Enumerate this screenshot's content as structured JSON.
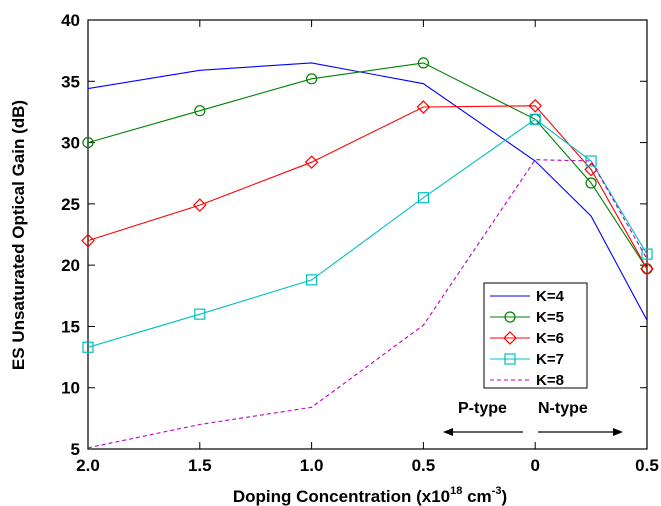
{
  "chart_data": {
    "type": "line",
    "title": "",
    "xlabel": "Doping Concentration (x10",
    "xlabel_sup": "18",
    "xlabel_tail": " cm",
    "xlabel_sup2": "-3",
    "xlabel_end": ")",
    "ylabel": "ES Unsaturated Optical Gain (dB)",
    "x_tick_labels": [
      "2.0",
      "1.5",
      "1.0",
      "0.5",
      "0",
      "0.5"
    ],
    "x_positions": [
      0,
      1,
      2,
      3,
      4,
      5
    ],
    "y_ticks": [
      5,
      10,
      15,
      20,
      25,
      30,
      35,
      40
    ],
    "ylim": [
      5,
      40
    ],
    "grid": false,
    "legend_position": "lower-right",
    "series": [
      {
        "name": "K=4",
        "color": "#0000ff",
        "marker": "none",
        "dash": "",
        "x": [
          0,
          1,
          2,
          3,
          4,
          4.5,
          5
        ],
        "y": [
          34.4,
          35.9,
          36.5,
          34.8,
          28.5,
          24.0,
          15.5
        ]
      },
      {
        "name": "K=5",
        "color": "#008000",
        "marker": "circle",
        "dash": "",
        "x": [
          0,
          1,
          2,
          3,
          4,
          4.5,
          5
        ],
        "y": [
          30.0,
          32.6,
          35.2,
          36.5,
          31.9,
          26.7,
          19.7
        ]
      },
      {
        "name": "K=6",
        "color": "#ff0000",
        "marker": "diamond",
        "dash": "",
        "x": [
          0,
          1,
          2,
          3,
          4,
          4.5,
          5
        ],
        "y": [
          22.0,
          24.9,
          28.4,
          32.9,
          33.0,
          27.8,
          19.7
        ]
      },
      {
        "name": "K=7",
        "color": "#00bfbf",
        "marker": "square",
        "dash": "",
        "x": [
          0,
          1,
          2,
          3,
          4,
          4.5,
          5
        ],
        "y": [
          13.3,
          16.0,
          18.8,
          25.5,
          31.9,
          28.5,
          20.9
        ]
      },
      {
        "name": "K=8",
        "color": "#bf00bf",
        "marker": "none",
        "dash": "4,3",
        "x": [
          0,
          1,
          2,
          3,
          4,
          4.5,
          5
        ],
        "y": [
          5.1,
          7.0,
          8.4,
          15.1,
          28.6,
          28.5,
          20.5
        ]
      }
    ],
    "annotations": {
      "p_type": "P-type",
      "n_type": "N-type"
    }
  }
}
